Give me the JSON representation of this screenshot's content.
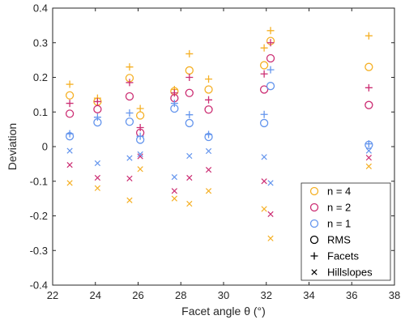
{
  "chart_data": {
    "type": "scatter",
    "title": "",
    "xlabel": "Facet angle θ (°)",
    "ylabel": "Deviation",
    "xlim": [
      22,
      38
    ],
    "ylim": [
      -0.4,
      0.4
    ],
    "xticks": [
      22,
      24,
      26,
      28,
      30,
      32,
      34,
      36,
      38
    ],
    "yticks": [
      -0.4,
      -0.3,
      -0.2,
      -0.1,
      0,
      0.1,
      0.2,
      0.3,
      0.4
    ],
    "xtick_labels": [
      "22",
      "24",
      "26",
      "28",
      "30",
      "32",
      "34",
      "36",
      "38"
    ],
    "ytick_labels": [
      "-0.4",
      "-0.3",
      "-0.2",
      "-0.1",
      "0",
      "0.1",
      "0.2",
      "0.3",
      "0.4"
    ],
    "grid": false,
    "legend_position": "bottom-right",
    "colors": {
      "n4": "#F5B025",
      "n2": "#CC2E73",
      "n1": "#6495ED",
      "key": "#000000"
    },
    "series": [
      {
        "name": "n = 4",
        "marker": "RMS",
        "color": "#F5B025",
        "x": [
          22.8,
          24.1,
          25.6,
          26.1,
          27.7,
          28.4,
          29.3,
          31.9,
          32.2,
          36.8
        ],
        "y": [
          0.148,
          0.13,
          0.198,
          0.09,
          0.16,
          0.22,
          0.165,
          0.235,
          0.305,
          0.23
        ]
      },
      {
        "name": "n = 4",
        "marker": "Facets",
        "color": "#F5B025",
        "x": [
          22.8,
          24.1,
          25.6,
          26.1,
          27.7,
          28.4,
          29.3,
          31.9,
          32.2,
          36.8
        ],
        "y": [
          0.18,
          0.14,
          0.23,
          0.11,
          0.165,
          0.268,
          0.195,
          0.285,
          0.335,
          0.32
        ]
      },
      {
        "name": "n = 4",
        "marker": "Hillslopes",
        "color": "#F5B025",
        "x": [
          22.8,
          24.1,
          25.6,
          26.1,
          27.7,
          28.4,
          29.3,
          31.9,
          32.2,
          36.8
        ],
        "y": [
          -0.105,
          -0.12,
          -0.155,
          -0.065,
          -0.15,
          -0.165,
          -0.128,
          -0.18,
          -0.265,
          -0.057
        ]
      },
      {
        "name": "n = 2",
        "marker": "RMS",
        "color": "#CC2E73",
        "x": [
          22.8,
          24.1,
          25.6,
          26.1,
          27.7,
          28.4,
          29.3,
          31.9,
          32.2,
          36.8
        ],
        "y": [
          0.095,
          0.108,
          0.145,
          0.04,
          0.14,
          0.155,
          0.107,
          0.165,
          0.255,
          0.12
        ]
      },
      {
        "name": "n = 2",
        "marker": "Facets",
        "color": "#CC2E73",
        "x": [
          22.8,
          24.1,
          25.6,
          26.1,
          27.7,
          28.4,
          29.3,
          31.9,
          32.2,
          36.8
        ],
        "y": [
          0.125,
          0.13,
          0.185,
          0.055,
          0.155,
          0.2,
          0.135,
          0.21,
          0.3,
          0.17
        ]
      },
      {
        "name": "n = 2",
        "marker": "Hillslopes",
        "color": "#CC2E73",
        "x": [
          22.8,
          24.1,
          25.6,
          26.1,
          27.7,
          28.4,
          29.3,
          31.9,
          32.2,
          36.8
        ],
        "y": [
          -0.053,
          -0.09,
          -0.092,
          -0.028,
          -0.128,
          -0.09,
          -0.067,
          -0.1,
          -0.195,
          -0.032
        ]
      },
      {
        "name": "n = 1",
        "marker": "RMS",
        "color": "#6495ED",
        "x": [
          22.8,
          24.1,
          25.6,
          26.1,
          27.7,
          28.4,
          29.3,
          31.9,
          32.2,
          36.8
        ],
        "y": [
          0.03,
          0.07,
          0.072,
          0.02,
          0.11,
          0.068,
          0.028,
          0.068,
          0.175,
          0.005
        ]
      },
      {
        "name": "n = 1",
        "marker": "Facets",
        "color": "#6495ED",
        "x": [
          22.8,
          24.1,
          25.6,
          26.1,
          27.7,
          28.4,
          29.3,
          31.9,
          32.2,
          36.8
        ],
        "y": [
          0.037,
          0.085,
          0.097,
          0.03,
          0.125,
          0.092,
          0.035,
          0.093,
          0.222,
          0.008
        ]
      },
      {
        "name": "n = 1",
        "marker": "Hillslopes",
        "color": "#6495ED",
        "x": [
          22.8,
          24.1,
          25.6,
          26.1,
          27.7,
          28.4,
          29.3,
          31.9,
          32.2,
          36.8
        ],
        "y": [
          -0.012,
          -0.048,
          -0.033,
          -0.022,
          -0.088,
          -0.027,
          -0.013,
          -0.03,
          -0.105,
          -0.012
        ]
      }
    ],
    "legend": [
      {
        "label": "n = 4",
        "symbol": "circle",
        "color": "#F5B025"
      },
      {
        "label": "n = 2",
        "symbol": "circle",
        "color": "#CC2E73"
      },
      {
        "label": "n = 1",
        "symbol": "circle",
        "color": "#6495ED"
      },
      {
        "label": "RMS",
        "symbol": "circle",
        "color": "#000000"
      },
      {
        "label": "Facets",
        "symbol": "plus",
        "color": "#000000"
      },
      {
        "label": "Hillslopes",
        "symbol": "cross",
        "color": "#000000"
      }
    ]
  }
}
